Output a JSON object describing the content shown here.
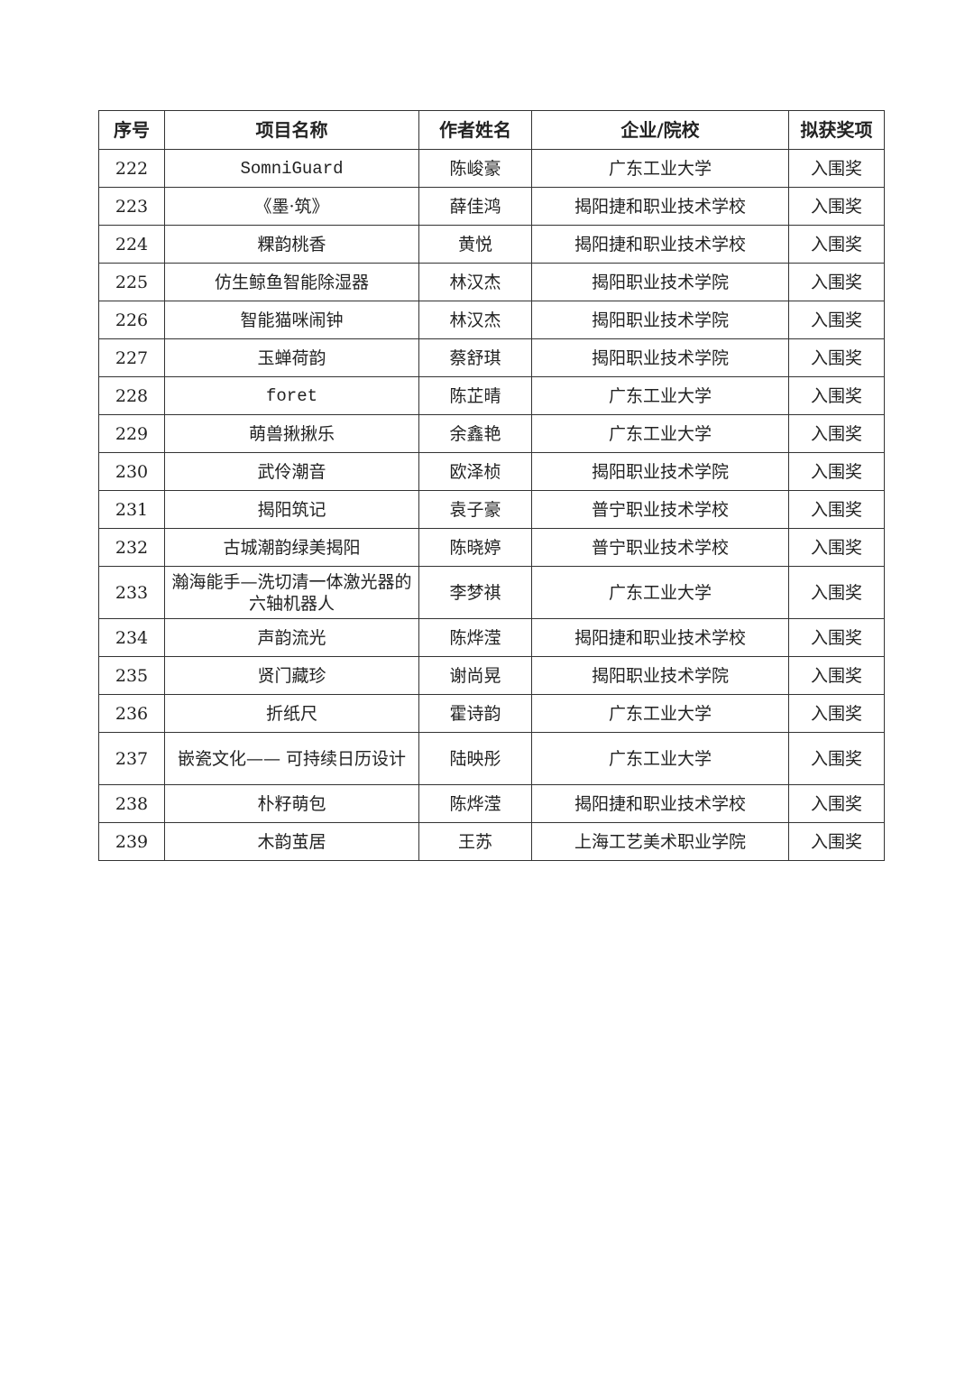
{
  "table": {
    "headers": [
      "序号",
      "项目名称",
      "作者姓名",
      "企业/院校",
      "拟获奖项"
    ],
    "rows": [
      [
        "222",
        "SomniGuard",
        "陈峻豪",
        "广东工业大学",
        "入围奖"
      ],
      [
        "223",
        "《墨·筑》",
        "薛佳鸿",
        "揭阳捷和职业技术学校",
        "入围奖"
      ],
      [
        "224",
        "粿韵桃香",
        "黄悦",
        "揭阳捷和职业技术学校",
        "入围奖"
      ],
      [
        "225",
        "仿生鲸鱼智能除湿器",
        "林汉杰",
        "揭阳职业技术学院",
        "入围奖"
      ],
      [
        "226",
        "智能猫咪闹钟",
        "林汉杰",
        "揭阳职业技术学院",
        "入围奖"
      ],
      [
        "227",
        "玉蝉荷韵",
        "蔡舒琪",
        "揭阳职业技术学院",
        "入围奖"
      ],
      [
        "228",
        "foret",
        "陈芷晴",
        "广东工业大学",
        "入围奖"
      ],
      [
        "229",
        "萌兽揪揪乐",
        "余鑫艳",
        "广东工业大学",
        "入围奖"
      ],
      [
        "230",
        "武伶潮音",
        "欧泽桢",
        "揭阳职业技术学院",
        "入围奖"
      ],
      [
        "231",
        "揭阳筑记",
        "袁子豪",
        "普宁职业技术学校",
        "入围奖"
      ],
      [
        "232",
        "古城潮韵绿美揭阳",
        "陈晓婷",
        "普宁职业技术学校",
        "入围奖"
      ],
      [
        "233",
        "瀚海能手—洗切清一体激光器的六轴机器人",
        "李梦祺",
        "广东工业大学",
        "入围奖"
      ],
      [
        "234",
        "声韵流光",
        "陈烨滢",
        "揭阳捷和职业技术学校",
        "入围奖"
      ],
      [
        "235",
        "贤门藏珍",
        "谢尚晃",
        "揭阳职业技术学院",
        "入围奖"
      ],
      [
        "236",
        "折纸尺",
        "霍诗韵",
        "广东工业大学",
        "入围奖"
      ],
      [
        "237",
        "嵌瓷文化—— 可持续日历设计",
        "陆映彤",
        "广东工业大学",
        "入围奖"
      ],
      [
        "238",
        "朴籽萌包",
        "陈烨滢",
        "揭阳捷和职业技术学校",
        "入围奖"
      ],
      [
        "239",
        "木韵茧居",
        "王苏",
        "上海工艺美术职业学院",
        "入围奖"
      ]
    ]
  }
}
